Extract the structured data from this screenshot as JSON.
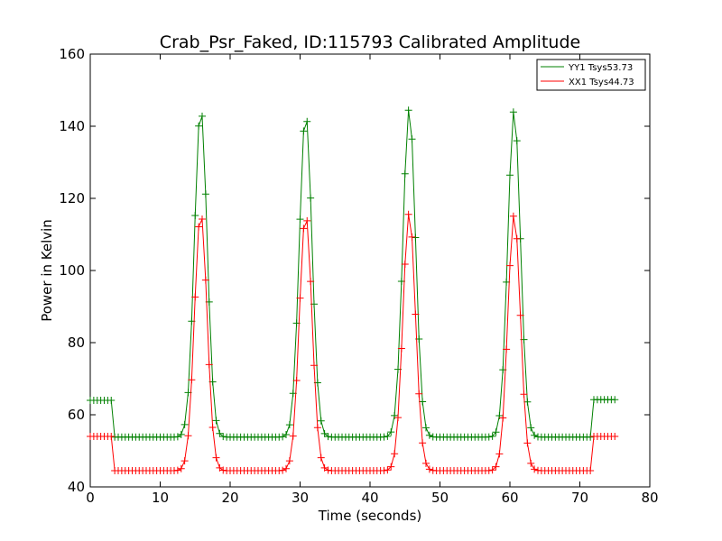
{
  "chart_data": {
    "type": "line",
    "title": "Crab_Psr_Faked, ID:115793 Calibrated Amplitude",
    "xlabel": "Time (seconds)",
    "ylabel": "Power in Kelvin",
    "xlim": [
      0,
      80
    ],
    "ylim": [
      40,
      160
    ],
    "xticks": [
      "0",
      "10",
      "20",
      "30",
      "40",
      "50",
      "60",
      "70",
      "80"
    ],
    "yticks": [
      "40",
      "60",
      "80",
      "100",
      "120",
      "140",
      "160"
    ],
    "grid": false,
    "legend_position": "top-right",
    "marker": "+",
    "sample_spacing_seconds": 0.5,
    "series": [
      {
        "name": "YY1 Tsys53.73",
        "color": "#008000",
        "baseline_segments": [
          {
            "from": 0,
            "to": 3,
            "value": 64
          },
          {
            "from": 3.5,
            "to": 71.5,
            "value": 53.8
          },
          {
            "from": 72,
            "to": 75,
            "value": 64.2
          }
        ],
        "peaks": [
          {
            "t": 15.8,
            "value": 145
          },
          {
            "t": 30.8,
            "value": 143.5
          },
          {
            "t": 45.6,
            "value": 145
          },
          {
            "t": 60.6,
            "value": 144.5
          }
        ],
        "peak_width_seconds": 0.9
      },
      {
        "name": "XX1 Tsys44.73",
        "color": "#ff0000",
        "baseline_segments": [
          {
            "from": 0,
            "to": 3,
            "value": 54
          },
          {
            "from": 3.5,
            "to": 71.5,
            "value": 44.5
          },
          {
            "from": 72,
            "to": 75,
            "value": 54
          }
        ],
        "peaks": [
          {
            "t": 15.8,
            "value": 116
          },
          {
            "t": 30.8,
            "value": 115.5
          },
          {
            "t": 45.6,
            "value": 116
          },
          {
            "t": 60.6,
            "value": 115.5
          }
        ],
        "peak_width_seconds": 0.9
      }
    ]
  }
}
